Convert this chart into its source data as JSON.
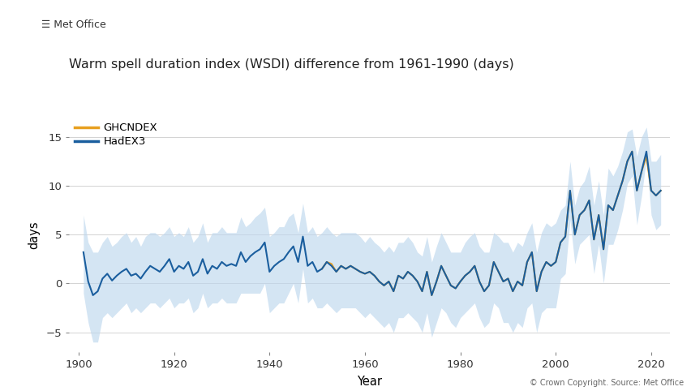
{
  "title": "Warm spell duration index (WSDI) difference from 1961-1990 (days)",
  "xlabel": "Year",
  "ylabel": "days",
  "copyright_text": "© Crown Copyright. Source: Met Office",
  "legend_labels": [
    "GHCNDEX",
    "HadEX3"
  ],
  "legend_colors": [
    "#E8A020",
    "#1A5E9E"
  ],
  "shade_color": "#BDD7EE",
  "xlim": [
    1898,
    2024
  ],
  "ylim": [
    -7,
    17
  ],
  "yticks": [
    -5,
    0,
    5,
    10,
    15
  ],
  "xticks": [
    1900,
    1920,
    1940,
    1960,
    1980,
    2000,
    2020
  ],
  "background_color": "#ffffff",
  "years_hadex3": [
    1901,
    1902,
    1903,
    1904,
    1905,
    1906,
    1907,
    1908,
    1909,
    1910,
    1911,
    1912,
    1913,
    1914,
    1915,
    1916,
    1917,
    1918,
    1919,
    1920,
    1921,
    1922,
    1923,
    1924,
    1925,
    1926,
    1927,
    1928,
    1929,
    1930,
    1931,
    1932,
    1933,
    1934,
    1935,
    1936,
    1937,
    1938,
    1939,
    1940,
    1941,
    1942,
    1943,
    1944,
    1945,
    1946,
    1947,
    1948,
    1949,
    1950,
    1951,
    1952,
    1953,
    1954,
    1955,
    1956,
    1957,
    1958,
    1959,
    1960,
    1961,
    1962,
    1963,
    1964,
    1965,
    1966,
    1967,
    1968,
    1969,
    1970,
    1971,
    1972,
    1973,
    1974,
    1975,
    1976,
    1977,
    1978,
    1979,
    1980,
    1981,
    1982,
    1983,
    1984,
    1985,
    1986,
    1987,
    1988,
    1989,
    1990,
    1991,
    1992,
    1993,
    1994,
    1995,
    1996,
    1997,
    1998,
    1999,
    2000,
    2001,
    2002,
    2003,
    2004,
    2005,
    2006,
    2007,
    2008,
    2009,
    2010,
    2011,
    2012,
    2013,
    2014,
    2015,
    2016,
    2017,
    2018,
    2019,
    2020,
    2021,
    2022
  ],
  "hadex3_values": [
    3.2,
    0.2,
    -1.2,
    -0.8,
    0.5,
    1.0,
    0.3,
    0.8,
    1.2,
    1.5,
    0.8,
    1.0,
    0.5,
    1.2,
    1.8,
    1.5,
    1.2,
    1.8,
    2.5,
    1.2,
    1.8,
    1.5,
    2.2,
    0.8,
    1.2,
    2.5,
    1.0,
    1.8,
    1.5,
    2.2,
    1.8,
    2.0,
    1.8,
    3.2,
    2.2,
    2.8,
    3.2,
    3.5,
    4.2,
    1.2,
    1.8,
    2.2,
    2.5,
    3.2,
    3.8,
    2.2,
    4.8,
    1.8,
    2.2,
    1.2,
    1.5,
    2.2,
    1.8,
    1.2,
    1.8,
    1.5,
    1.8,
    1.5,
    1.2,
    1.0,
    1.2,
    0.8,
    0.2,
    -0.2,
    0.2,
    -0.8,
    0.8,
    0.5,
    1.2,
    0.8,
    0.2,
    -0.8,
    1.2,
    -1.2,
    0.2,
    1.8,
    0.8,
    -0.2,
    -0.5,
    0.2,
    0.8,
    1.2,
    1.8,
    0.2,
    -0.8,
    -0.2,
    2.2,
    1.2,
    0.2,
    0.5,
    -0.8,
    0.2,
    -0.2,
    2.2,
    3.2,
    -0.8,
    1.2,
    2.2,
    1.8,
    2.2,
    4.2,
    4.8,
    9.5,
    5.0,
    7.0,
    7.5,
    8.5,
    4.5,
    7.0,
    3.5,
    8.0,
    7.5,
    9.0,
    10.5,
    12.5,
    13.5,
    9.5,
    11.5,
    13.5,
    9.5,
    9.0,
    9.5
  ],
  "years_ghcndex": [
    1951,
    1952,
    1953,
    1954,
    1955,
    1956,
    1957,
    1958,
    1959,
    1960,
    1961,
    1962,
    1963,
    1964,
    1965,
    1966,
    1967,
    1968,
    1969,
    1970,
    1971,
    1972,
    1973,
    1974,
    1975,
    1976,
    1977,
    1978,
    1979,
    1980,
    1981,
    1982,
    1983,
    1984,
    1985,
    1986,
    1987,
    1988,
    1989,
    1990,
    1991,
    1992,
    1993,
    1994,
    1995,
    1996,
    1997,
    1998,
    1999,
    2000,
    2001,
    2002,
    2003,
    2004,
    2005,
    2006,
    2007,
    2008,
    2009,
    2010,
    2011,
    2012,
    2013,
    2014,
    2015,
    2016,
    2017,
    2018,
    2019,
    2020,
    2021,
    2022
  ],
  "ghcndex_values": [
    1.5,
    2.2,
    2.0,
    1.2,
    1.8,
    1.5,
    1.8,
    1.5,
    1.2,
    1.0,
    1.2,
    0.8,
    0.2,
    -0.2,
    0.2,
    -0.8,
    0.8,
    0.5,
    1.2,
    0.8,
    0.2,
    -0.8,
    1.2,
    -1.2,
    0.2,
    1.8,
    0.8,
    -0.2,
    -0.5,
    0.2,
    0.8,
    1.2,
    1.8,
    0.2,
    -0.8,
    -0.2,
    2.2,
    1.2,
    0.2,
    0.5,
    -0.8,
    0.2,
    -0.2,
    2.2,
    3.2,
    -0.8,
    1.2,
    2.2,
    1.8,
    2.2,
    4.2,
    4.8,
    9.5,
    5.0,
    7.0,
    7.5,
    8.5,
    4.5,
    7.0,
    3.5,
    8.0,
    7.5,
    9.0,
    10.5,
    12.5,
    13.5,
    9.5,
    11.5,
    13.0,
    9.5,
    9.0,
    9.5
  ],
  "shade_upper": [
    7.0,
    4.2,
    3.2,
    3.2,
    4.2,
    4.8,
    3.8,
    4.2,
    4.8,
    5.2,
    4.2,
    4.8,
    3.8,
    4.8,
    5.2,
    5.2,
    4.8,
    5.2,
    5.8,
    4.8,
    5.2,
    4.8,
    5.8,
    4.2,
    4.8,
    6.2,
    4.2,
    5.2,
    5.2,
    5.8,
    5.2,
    5.2,
    5.2,
    6.8,
    5.8,
    6.2,
    6.8,
    7.2,
    7.8,
    4.8,
    5.2,
    5.8,
    5.8,
    6.8,
    7.2,
    5.2,
    8.2,
    5.2,
    5.8,
    4.8,
    5.2,
    5.8,
    5.2,
    4.8,
    5.2,
    5.2,
    5.2,
    5.2,
    4.8,
    4.2,
    4.8,
    4.2,
    3.8,
    3.2,
    3.8,
    3.2,
    4.2,
    4.2,
    4.8,
    4.2,
    3.2,
    2.8,
    4.8,
    2.2,
    3.8,
    5.2,
    4.2,
    3.2,
    3.2,
    3.2,
    4.2,
    4.8,
    5.2,
    3.8,
    3.2,
    3.2,
    5.2,
    4.8,
    4.2,
    4.2,
    3.2,
    4.2,
    3.8,
    5.2,
    6.2,
    3.2,
    5.2,
    6.2,
    5.8,
    6.2,
    7.5,
    8.0,
    12.5,
    8.0,
    9.8,
    10.5,
    12.0,
    8.0,
    10.5,
    7.0,
    11.8,
    11.0,
    12.0,
    13.5,
    15.5,
    15.8,
    13.0,
    15.0,
    16.0,
    12.5,
    12.5,
    13.2
  ],
  "shade_lower": [
    -1.0,
    -4.0,
    -6.0,
    -6.0,
    -3.5,
    -3.0,
    -3.5,
    -3.0,
    -2.5,
    -2.0,
    -3.0,
    -2.5,
    -3.0,
    -2.5,
    -2.0,
    -2.0,
    -2.5,
    -2.0,
    -1.5,
    -2.5,
    -2.0,
    -2.0,
    -1.5,
    -3.0,
    -2.5,
    -1.0,
    -2.5,
    -2.0,
    -2.0,
    -1.5,
    -2.0,
    -2.0,
    -2.0,
    -1.0,
    -1.0,
    -1.0,
    -1.0,
    -1.0,
    0.0,
    -3.0,
    -2.5,
    -2.0,
    -2.0,
    -1.0,
    0.0,
    -2.0,
    1.5,
    -2.0,
    -1.5,
    -2.5,
    -2.5,
    -2.0,
    -2.5,
    -3.0,
    -2.5,
    -2.5,
    -2.5,
    -2.5,
    -3.0,
    -3.5,
    -3.0,
    -3.5,
    -4.0,
    -4.5,
    -4.0,
    -5.0,
    -3.5,
    -3.5,
    -3.0,
    -3.5,
    -4.0,
    -5.0,
    -3.0,
    -5.5,
    -4.0,
    -2.5,
    -3.0,
    -4.0,
    -4.5,
    -3.5,
    -3.0,
    -2.5,
    -2.0,
    -3.5,
    -4.5,
    -4.0,
    -2.0,
    -2.5,
    -4.0,
    -4.0,
    -5.0,
    -4.0,
    -4.5,
    -2.5,
    -2.0,
    -5.0,
    -3.0,
    -2.5,
    -2.5,
    -2.5,
    0.5,
    1.0,
    6.5,
    2.0,
    4.0,
    4.5,
    5.0,
    1.0,
    4.0,
    0.0,
    4.0,
    4.0,
    5.5,
    7.5,
    10.2,
    11.0,
    6.0,
    9.0,
    12.8,
    7.0,
    5.5,
    6.0
  ]
}
